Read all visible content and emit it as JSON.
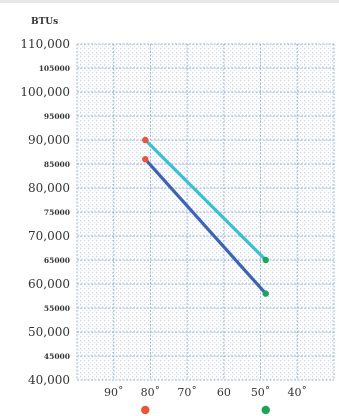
{
  "chart_data": {
    "type": "line",
    "ylabel": "BTUs",
    "xlabel": "",
    "x_ticks": [
      "90˚",
      "80˚",
      "70˚",
      "60",
      "50˚",
      "40˚"
    ],
    "y_ticks": [
      {
        "value": 110000,
        "label": "110,000"
      },
      {
        "value": 105000,
        "label": "105000"
      },
      {
        "value": 100000,
        "label": "100,000"
      },
      {
        "value": 95000,
        "label": "95000"
      },
      {
        "value": 90000,
        "label": "90,000"
      },
      {
        "value": 85000,
        "label": "85000"
      },
      {
        "value": 80000,
        "label": "80,000"
      },
      {
        "value": 75000,
        "label": "75000"
      },
      {
        "value": 70000,
        "label": "70,000"
      },
      {
        "value": 65000,
        "label": "65000"
      },
      {
        "value": 60000,
        "label": "60,000"
      },
      {
        "value": 55000,
        "label": "55000"
      },
      {
        "value": 50000,
        "label": "50,000"
      },
      {
        "value": 45000,
        "label": "45000"
      },
      {
        "value": 40000,
        "label": "40,000"
      }
    ],
    "ylim": [
      40000,
      110000
    ],
    "xlim": [
      97,
      33
    ],
    "grid": true,
    "series": [
      {
        "color": "#3bbfd9",
        "points": [
          {
            "x": 80,
            "y": 90000
          },
          {
            "x": 50,
            "y": 65000
          }
        ]
      },
      {
        "color": "#3d63b8",
        "points": [
          {
            "x": 80,
            "y": 86000
          },
          {
            "x": 50,
            "y": 58000
          }
        ]
      }
    ],
    "start_marker_color": "#e8553b",
    "end_marker_color": "#1fa35a",
    "legend_markers": [
      {
        "x": 80,
        "color": "#e8553b"
      },
      {
        "x": 50,
        "color": "#1fa35a"
      }
    ]
  }
}
